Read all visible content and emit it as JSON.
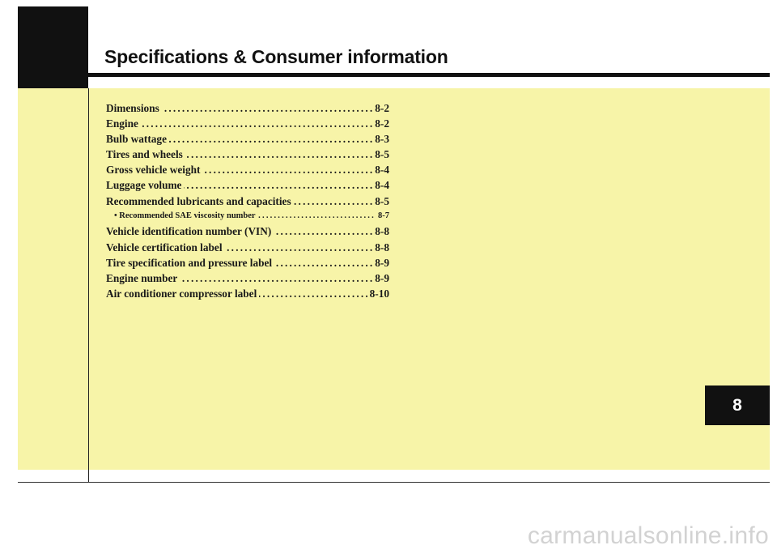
{
  "header": {
    "title": "Specifications & Consumer information"
  },
  "chapter": {
    "number": "8"
  },
  "toc": [
    {
      "label": "Dimensions",
      "page": "8-2"
    },
    {
      "label": "Engine",
      "page": "8-2"
    },
    {
      "label": "Bulb wattage",
      "page": "8-3"
    },
    {
      "label": "Tires and wheels",
      "page": "8-5"
    },
    {
      "label": "Gross vehicle weight",
      "page": "8-4"
    },
    {
      "label": "Luggage volume",
      "page": "8-4"
    },
    {
      "label": "Recommended lubricants and capacities",
      "page": "8-5"
    },
    {
      "label": "• Recommended SAE viscosity number",
      "page": "8-7"
    },
    {
      "label": "Vehicle identification number (VIN)",
      "page": "8-8"
    },
    {
      "label": "Vehicle certification label",
      "page": "8-8"
    },
    {
      "label": "Tire specification and pressure label",
      "page": "8-9"
    },
    {
      "label": "Engine number",
      "page": "8-9"
    },
    {
      "label": "Air conditioner compressor label",
      "page": "8-10"
    }
  ],
  "watermark": {
    "text": "carmanualsonline.info"
  },
  "colors": {
    "panel": "#f7f4a8",
    "dark": "#111111"
  }
}
